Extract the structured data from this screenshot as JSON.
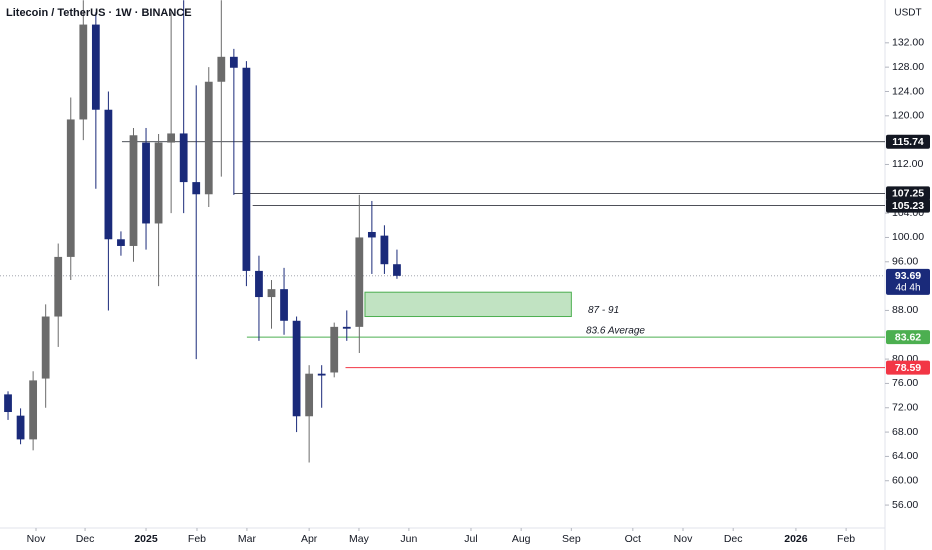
{
  "chart_data": {
    "type": "candlestick",
    "title": "Litecoin / TetherUS · 1W · BINANCE",
    "currency": "USDT",
    "categories": [
      null,
      null,
      null,
      null,
      null,
      null,
      null,
      null,
      null,
      null,
      null,
      null,
      null,
      null,
      null,
      null,
      null,
      null,
      null,
      null,
      null,
      null,
      null,
      null,
      null,
      null,
      null,
      null,
      null,
      null,
      null,
      null
    ],
    "open": [
      74.2,
      70.7,
      66.8,
      76.8,
      87,
      96.8,
      119.4,
      135,
      121,
      99.7,
      98.6,
      115.6,
      102.3,
      115.6,
      117.1,
      109.1,
      107.1,
      125.6,
      129.7,
      127.9,
      94.5,
      90.2,
      91.5,
      86.3,
      70.6,
      77.6,
      77.8,
      85.3,
      85.3,
      100.9,
      100.3,
      95.6
    ],
    "high": [
      74.7,
      71.9,
      78,
      89,
      99,
      123,
      139,
      137,
      124,
      101,
      118,
      118,
      117,
      137,
      139,
      125,
      128,
      139,
      131,
      129,
      97,
      93,
      95,
      87,
      79,
      79,
      86,
      88,
      107,
      106,
      102,
      98
    ],
    "low": [
      70,
      66,
      65,
      72,
      82,
      93,
      116,
      108,
      88,
      97,
      96,
      98,
      92,
      104,
      104,
      80,
      105,
      110,
      107,
      92,
      83,
      85,
      84,
      68,
      63,
      72,
      77,
      83,
      81,
      94,
      94,
      93.2
    ],
    "close": [
      71.3,
      66.8,
      76.5,
      87,
      96.8,
      119.4,
      135,
      121,
      99.7,
      98.6,
      116.8,
      102.3,
      115.6,
      117.1,
      109.1,
      107.1,
      125.6,
      129.7,
      127.9,
      94.5,
      90.2,
      91.5,
      86.3,
      70.6,
      77.6,
      77.3,
      85.3,
      85,
      100,
      100,
      95.6,
      93.69
    ],
    "up_color": "#6b6b6b",
    "down_color": "#1a2a7a",
    "xlim": [
      -0.64,
      69.9
    ],
    "xticks": [
      {
        "value": 2.23,
        "label": "Nov"
      },
      {
        "value": 6.14,
        "label": "Dec"
      },
      {
        "value": 11,
        "label": "2025"
      },
      {
        "value": 15.06,
        "label": "Feb"
      },
      {
        "value": 19.04,
        "label": "Mar"
      },
      {
        "value": 24,
        "label": "Apr"
      },
      {
        "value": 27.97,
        "label": "May"
      },
      {
        "value": 31.95,
        "label": "Jun"
      },
      {
        "value": 36.9,
        "label": "Jul"
      },
      {
        "value": 40.9,
        "label": "Aug"
      },
      {
        "value": 44.9,
        "label": "Sep"
      },
      {
        "value": 49.8,
        "label": "Oct"
      },
      {
        "value": 53.8,
        "label": "Nov"
      },
      {
        "value": 57.8,
        "label": "Dec"
      },
      {
        "value": 62.8,
        "label": "2026"
      },
      {
        "value": 66.8,
        "label": "Feb"
      }
    ],
    "ylim": [
      52.23,
      139.04
    ],
    "yticks": [
      {
        "value": 132,
        "label": "132.00"
      },
      {
        "value": 128,
        "label": "128.00"
      },
      {
        "value": 124,
        "label": "124.00"
      },
      {
        "value": 120,
        "label": "120.00"
      },
      {
        "value": 112,
        "label": "112.00"
      },
      {
        "value": 104,
        "label": "104.00"
      },
      {
        "value": 100,
        "label": "100.00"
      },
      {
        "value": 96,
        "label": "96.00"
      },
      {
        "value": 88,
        "label": "88.00"
      },
      {
        "value": 80,
        "label": "80.00"
      },
      {
        "value": 76,
        "label": "76.00"
      },
      {
        "value": 72,
        "label": "72.00"
      },
      {
        "value": 68,
        "label": "68.00"
      },
      {
        "value": 64,
        "label": "64.00"
      },
      {
        "value": 60,
        "label": "60.00"
      },
      {
        "value": 56,
        "label": "56.00"
      }
    ],
    "levels": [
      {
        "value": 115.74,
        "color": "#131722",
        "start": 9.08
      },
      {
        "value": 107.25,
        "color": "#131722",
        "start": 18.0
      },
      {
        "value": 105.23,
        "color": "#131722",
        "start": 19.5
      },
      {
        "value": 83.62,
        "color": "#4caf50",
        "start": 19.04
      },
      {
        "value": 78.59,
        "color": "#f23645",
        "start": 26.9
      }
    ],
    "current": {
      "value": 93.69,
      "countdown": "4d 4h",
      "color": "#1a2a7a"
    },
    "zone": {
      "low": 87,
      "high": 91,
      "label": "87 - 91",
      "start": 28.45,
      "end": 44.9,
      "color": "#4caf50"
    },
    "average_note": "83.6 Average"
  }
}
